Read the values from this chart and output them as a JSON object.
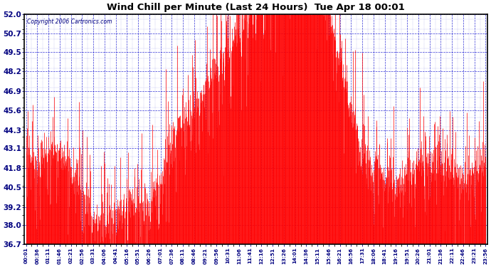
{
  "title": "Wind Chill per Minute (Last 24 Hours)  Tue Apr 18 00:01",
  "copyright": "Copyright 2006 Cartronics.com",
  "ylabel_values": [
    52.0,
    50.7,
    49.5,
    48.2,
    46.9,
    45.6,
    44.3,
    43.1,
    41.8,
    40.5,
    39.2,
    38.0,
    36.7
  ],
  "ymin": 36.7,
  "ymax": 52.0,
  "x_tick_labels": [
    "00:01",
    "00:36",
    "01:11",
    "01:46",
    "02:21",
    "02:56",
    "03:31",
    "04:06",
    "04:41",
    "05:16",
    "05:51",
    "06:26",
    "07:01",
    "07:36",
    "08:11",
    "08:46",
    "09:21",
    "09:56",
    "10:31",
    "11:06",
    "11:41",
    "12:16",
    "12:51",
    "13:26",
    "14:01",
    "14:36",
    "15:11",
    "15:46",
    "16:21",
    "16:56",
    "17:31",
    "18:06",
    "18:41",
    "19:16",
    "19:51",
    "20:26",
    "21:01",
    "21:36",
    "22:11",
    "22:46",
    "23:21",
    "23:56"
  ],
  "line_color": "#ff0000",
  "grid_color": "#0000cc",
  "bg_color": "#ffffff",
  "title_color": "#000000",
  "border_color": "#000000",
  "figsize": [
    6.9,
    3.75
  ],
  "dpi": 100
}
